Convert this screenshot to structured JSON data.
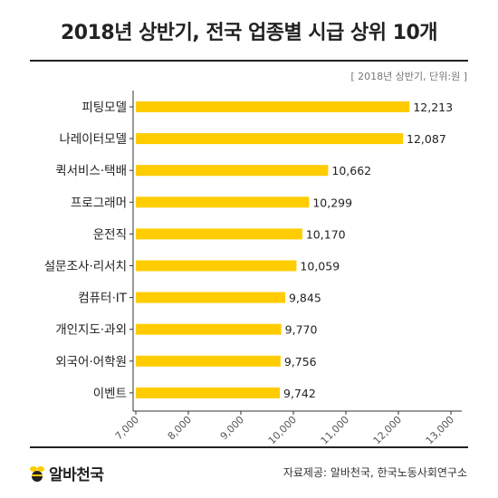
{
  "header": {
    "title": "2018년 상반기, 전국 업종별 시급 상위 10개",
    "note": "[ 2018년 상반기, 단위:원 ]"
  },
  "footer": {
    "logo_text": "알바천국",
    "source": "자료제공: 알바천국, 한국노동사회연구소"
  },
  "colors": {
    "bar": "#FFCC00",
    "axis": "#333333",
    "logo_accent": "#FFCC00"
  },
  "chart_data": {
    "type": "bar",
    "orientation": "horizontal",
    "title": "2018년 상반기, 전국 업종별 시급 상위 10개",
    "unit": "원",
    "categories": [
      "피팅모델",
      "나레이터모델",
      "퀵서비스·택배",
      "프로그래머",
      "운전직",
      "설문조사·리서치",
      "컴퓨터·IT",
      "개인지도·과외",
      "외국어·어학원",
      "이벤트"
    ],
    "values": [
      12213,
      12087,
      10662,
      10299,
      10170,
      10059,
      9845,
      9770,
      9756,
      9742
    ],
    "value_labels": [
      "12,213",
      "12,087",
      "10,662",
      "10,299",
      "10,170",
      "10,059",
      "9,845",
      "9,770",
      "9,756",
      "9,742"
    ],
    "xlim": [
      7000,
      13000
    ],
    "xticks": [
      7000,
      8000,
      9000,
      10000,
      11000,
      12000,
      13000
    ],
    "xtick_labels": [
      "7,000",
      "8,000",
      "9,000",
      "10,000",
      "11,000",
      "12,000",
      "13,000"
    ],
    "grid": false
  }
}
